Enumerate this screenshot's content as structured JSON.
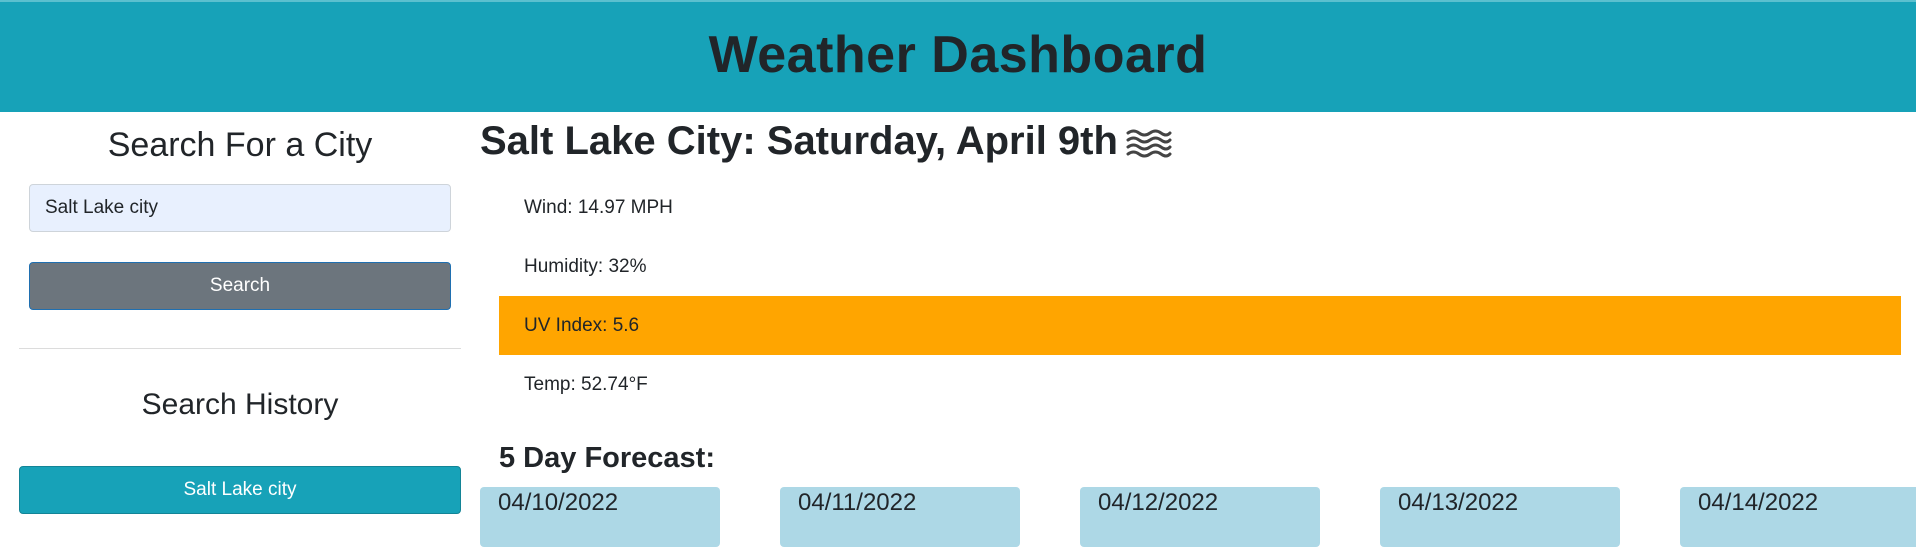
{
  "header": {
    "title": "Weather Dashboard"
  },
  "sidebar": {
    "search_title": "Search For a City",
    "input_value": "Salt Lake city",
    "search_button": "Search",
    "history_title": "Search History",
    "history": [
      "Salt Lake city"
    ]
  },
  "current": {
    "title": "Salt Lake City: Saturday, April 9th",
    "icon": "haze-icon",
    "wind": "Wind: 14.97 MPH",
    "humidity": "Humidity: 32%",
    "uv": "UV Index: 5.6",
    "temp": "Temp: 52.74°F",
    "uv_color": "#ffa500"
  },
  "forecast": {
    "title": "5 Day Forecast:",
    "days": [
      {
        "date": "04/10/2022"
      },
      {
        "date": "04/11/2022"
      },
      {
        "date": "04/12/2022"
      },
      {
        "date": "04/13/2022"
      },
      {
        "date": "04/14/2022"
      }
    ]
  },
  "colors": {
    "header_bg": "#17a2b8",
    "card_bg": "#add8e6",
    "search_button_bg": "#6c757d"
  }
}
